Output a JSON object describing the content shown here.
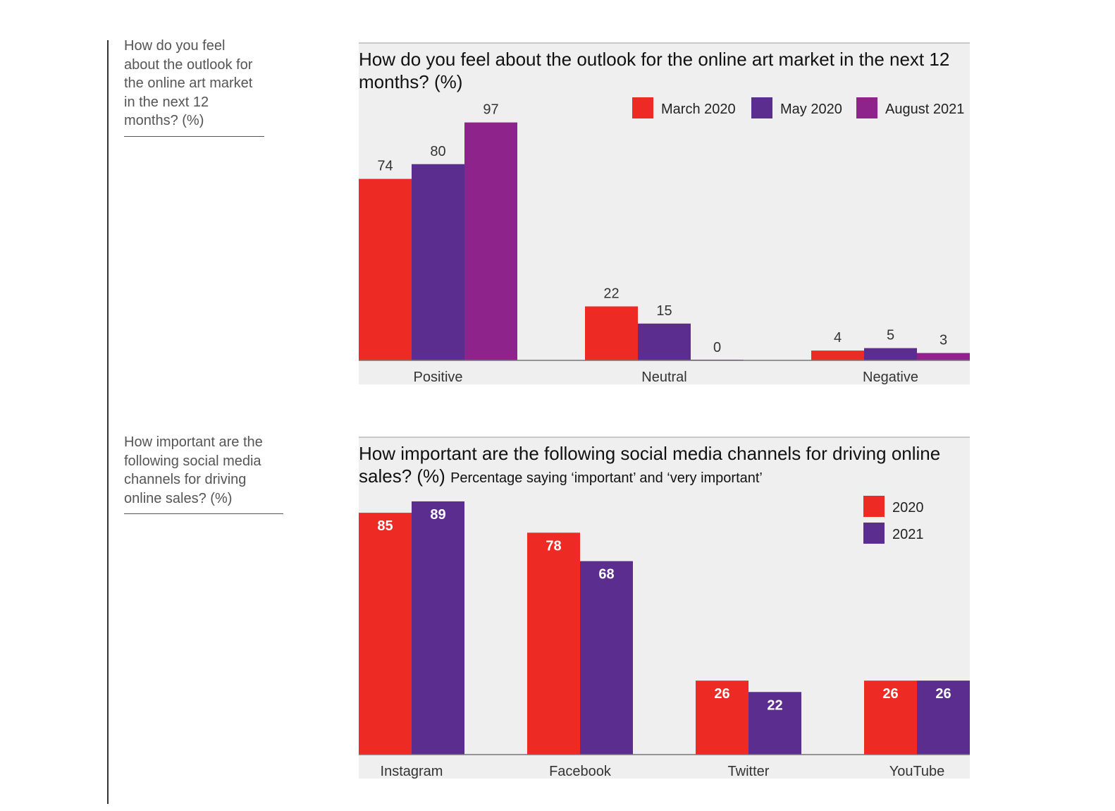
{
  "side_captions": {
    "outlook": "How do you feel about the outlook for the online art market in the next 12 months? (%)",
    "social": "How important are the following social media channels for driving online sales? (%)"
  },
  "colors": {
    "red": "#ee2a24",
    "purple": "#5b2d8e",
    "magenta": "#8e248b",
    "background": "#efefef"
  },
  "chart_data": [
    {
      "type": "bar",
      "title": "How do you feel about the outlook for the online art market in the next 12 months? (%)",
      "subtitle": "",
      "categories": [
        "Positive",
        "Neutral",
        "Negative"
      ],
      "series": [
        {
          "name": "March 2020",
          "color": "#ee2a24",
          "values": [
            74,
            22,
            4
          ]
        },
        {
          "name": "May 2020",
          "color": "#5b2d8e",
          "values": [
            80,
            15,
            5
          ]
        },
        {
          "name": "August 2021",
          "color": "#8e248b",
          "values": [
            97,
            0,
            3
          ]
        }
      ],
      "ylim": [
        0,
        100
      ],
      "grid": false,
      "legend": "top-right",
      "data_labels": "above"
    },
    {
      "type": "bar",
      "title": "How important are the following social media channels for driving online sales? (%)",
      "subtitle": "Percentage saying ‘important’ and ‘very important’",
      "categories": [
        "Instagram",
        "Facebook",
        "Twitter",
        "YouTube"
      ],
      "series": [
        {
          "name": "2020",
          "color": "#ee2a24",
          "values": [
            85,
            78,
            26,
            26
          ]
        },
        {
          "name": "2021",
          "color": "#5b2d8e",
          "values": [
            89,
            68,
            22,
            26
          ]
        }
      ],
      "ylim": [
        0,
        100
      ],
      "grid": false,
      "legend": "top-right",
      "data_labels": "inside"
    }
  ]
}
